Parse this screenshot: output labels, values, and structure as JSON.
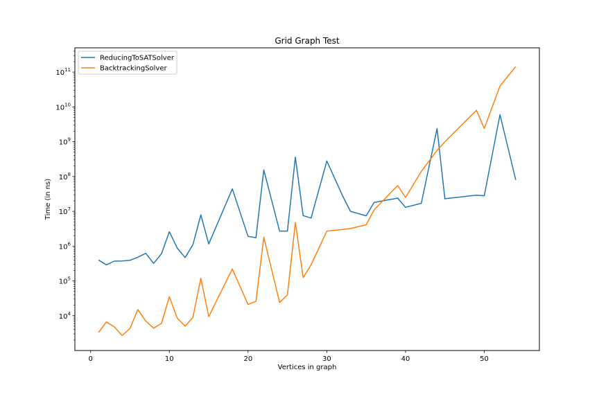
{
  "chart_data": {
    "type": "line",
    "title": "Grid Graph Test",
    "xlabel": "Vertices in graph",
    "ylabel": "Time (in ns)",
    "yscale": "log",
    "xlim": [
      -2,
      57
    ],
    "ylim": [
      1000,
      500000000000
    ],
    "xticks": [
      0,
      10,
      20,
      30,
      40,
      50
    ],
    "yticks": [
      {
        "base": "10",
        "exp": "4",
        "value": 10000
      },
      {
        "base": "10",
        "exp": "5",
        "value": 100000
      },
      {
        "base": "10",
        "exp": "6",
        "value": 1000000
      },
      {
        "base": "10",
        "exp": "7",
        "value": 10000000
      },
      {
        "base": "10",
        "exp": "8",
        "value": 100000000
      },
      {
        "base": "10",
        "exp": "9",
        "value": 1000000000
      },
      {
        "base": "10",
        "exp": "10",
        "value": 10000000000
      },
      {
        "base": "10",
        "exp": "11",
        "value": 100000000000
      }
    ],
    "grid": false,
    "legend_position": "top-left",
    "series": [
      {
        "name": "ReducingToSATSolver",
        "color": "#1f77b4",
        "x": [
          1,
          2,
          3,
          4,
          5,
          6,
          7,
          8,
          9,
          10,
          11,
          12,
          13,
          14,
          15,
          18,
          20,
          21,
          22,
          24,
          25,
          26,
          27,
          28,
          30,
          32,
          33,
          35,
          36,
          39,
          40,
          42,
          44,
          45,
          49,
          50,
          52,
          54
        ],
        "y": [
          400000,
          290000,
          370000,
          375000,
          390000,
          480000,
          620000,
          320000,
          600000,
          2600000,
          880000,
          470000,
          1100000,
          7900000,
          1150000,
          44000000,
          1900000,
          1750000,
          155000000,
          2700000,
          2700000,
          360000000,
          7500000,
          6400000,
          280000000,
          28000000,
          10000000,
          7400000,
          18000000,
          24000000,
          13000000,
          17000000,
          2400000000,
          23000000,
          29000000,
          28000000,
          6000000000,
          80000000
        ]
      },
      {
        "name": "BacktrackingSolver",
        "color": "#ff7f0e",
        "x": [
          1,
          2,
          3,
          4,
          5,
          6,
          7,
          8,
          9,
          10,
          11,
          12,
          13,
          14,
          15,
          18,
          20,
          21,
          22,
          24,
          25,
          26,
          27,
          28,
          30,
          32,
          33,
          35,
          36,
          39,
          40,
          42,
          44,
          45,
          49,
          50,
          52,
          54
        ],
        "y": [
          3300,
          6600,
          4800,
          2700,
          4300,
          15000,
          7000,
          4400,
          6000,
          35000,
          8500,
          5000,
          9000,
          120000,
          9500,
          220000,
          21000,
          26000,
          1800000,
          24000,
          40000,
          4800000,
          125000,
          290000,
          2700000,
          3000000,
          3200000,
          4100000,
          11000000,
          55000000,
          25000000,
          140000000,
          560000000,
          1000000000,
          8000000000,
          2400000000,
          40000000000,
          145000000000
        ]
      }
    ]
  }
}
